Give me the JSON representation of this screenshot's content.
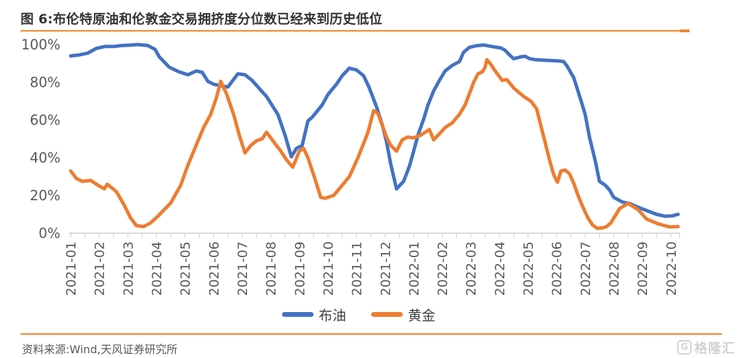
{
  "header": {
    "title": "图 6:布伦特原油和伦敦金交易拥挤度分位数已经来到历史低位"
  },
  "footer": {
    "source": "资料来源:Wind,天风证券研究所",
    "logo_mark": "G",
    "logo_text": "格隆汇"
  },
  "colors": {
    "brent_blue": "#4472C4",
    "gold_orange": "#ED7D31",
    "accent_rule": "#F0862B",
    "title_text": "#333333",
    "axis_text": "#595959",
    "axis_line": "#D0CECE",
    "legend_text": "#404040",
    "source_text": "#595959",
    "logo_gray": "#D2D2D2"
  },
  "chart_data": {
    "type": "line",
    "title": "布伦特原油和伦敦金交易拥挤度分位数已经来到历史低位",
    "xlabel": "",
    "ylabel": "",
    "ylim": [
      0,
      100
    ],
    "y_ticks": [
      "100%",
      "80%",
      "60%",
      "40%",
      "20%",
      "0%"
    ],
    "grid": false,
    "legend_position": "bottom",
    "x_unit": "months since 2021-01, fractional = intra-month (weekly data)",
    "categories": [
      "2021-01",
      "2021-02",
      "2021-03",
      "2021-04",
      "2021-05",
      "2021-06",
      "2021-07",
      "2021-08",
      "2021-09",
      "2021-10",
      "2021-11",
      "2021-12",
      "2022-01",
      "2022-02",
      "2022-03",
      "2022-04",
      "2022-05",
      "2022-06",
      "2022-07",
      "2022-08",
      "2022-09",
      "2022-10"
    ],
    "series": [
      {
        "name": "布油",
        "color": "#4472C4",
        "points": [
          [
            0,
            94
          ],
          [
            0.3,
            94.5
          ],
          [
            0.6,
            95.5
          ],
          [
            0.9,
            98
          ],
          [
            1.2,
            99
          ],
          [
            1.5,
            99
          ],
          [
            1.8,
            99.5
          ],
          [
            2.1,
            99.7
          ],
          [
            2.35,
            100
          ],
          [
            2.7,
            99.5
          ],
          [
            2.95,
            97.5
          ],
          [
            3.1,
            93.5
          ],
          [
            3.45,
            88
          ],
          [
            3.8,
            85.5
          ],
          [
            4.1,
            84
          ],
          [
            4.4,
            86
          ],
          [
            4.6,
            85.3
          ],
          [
            4.8,
            80.5
          ],
          [
            5,
            79
          ],
          [
            5.3,
            78
          ],
          [
            5.5,
            77.5
          ],
          [
            5.85,
            84.5
          ],
          [
            6.1,
            84
          ],
          [
            6.35,
            81
          ],
          [
            6.7,
            75
          ],
          [
            6.85,
            72.5
          ],
          [
            7.25,
            63
          ],
          [
            7.5,
            52
          ],
          [
            7.72,
            40.5
          ],
          [
            7.9,
            45
          ],
          [
            8.1,
            46.5
          ],
          [
            8.3,
            59.5
          ],
          [
            8.45,
            61.5
          ],
          [
            8.8,
            68
          ],
          [
            9,
            73.5
          ],
          [
            9.3,
            79
          ],
          [
            9.5,
            83.5
          ],
          [
            9.75,
            87.5
          ],
          [
            10,
            86.5
          ],
          [
            10.25,
            83.5
          ],
          [
            10.45,
            77
          ],
          [
            10.55,
            73
          ],
          [
            10.7,
            67
          ],
          [
            10.9,
            57.5
          ],
          [
            11.05,
            48.5
          ],
          [
            11.2,
            36.5
          ],
          [
            11.4,
            23.5
          ],
          [
            11.65,
            27.5
          ],
          [
            11.85,
            35.5
          ],
          [
            12,
            43.5
          ],
          [
            12.15,
            52
          ],
          [
            12.35,
            60.5
          ],
          [
            12.5,
            68
          ],
          [
            12.7,
            75.5
          ],
          [
            12.9,
            81
          ],
          [
            13.1,
            86
          ],
          [
            13.35,
            89
          ],
          [
            13.6,
            91
          ],
          [
            13.75,
            96
          ],
          [
            13.95,
            98.5
          ],
          [
            14.2,
            99.4
          ],
          [
            14.45,
            99.8
          ],
          [
            14.65,
            99.2
          ],
          [
            14.85,
            98.7
          ],
          [
            15.05,
            98.2
          ],
          [
            15.2,
            97
          ],
          [
            15.35,
            94.5
          ],
          [
            15.5,
            92.5
          ],
          [
            15.75,
            93.5
          ],
          [
            15.9,
            93.8
          ],
          [
            16.05,
            92.6
          ],
          [
            16.25,
            92
          ],
          [
            16.55,
            91.7
          ],
          [
            16.85,
            91.5
          ],
          [
            17.1,
            91.3
          ],
          [
            17.25,
            91
          ],
          [
            17.35,
            89
          ],
          [
            17.6,
            82.5
          ],
          [
            17.85,
            70.5
          ],
          [
            18,
            63
          ],
          [
            18.15,
            51
          ],
          [
            18.35,
            38.5
          ],
          [
            18.5,
            27.5
          ],
          [
            18.7,
            25.5
          ],
          [
            18.85,
            23
          ],
          [
            19,
            19
          ],
          [
            19.3,
            16.5
          ],
          [
            19.55,
            15.7
          ],
          [
            19.9,
            13.5
          ],
          [
            20.15,
            12
          ],
          [
            20.5,
            10
          ],
          [
            20.8,
            9
          ],
          [
            21.05,
            9.2
          ],
          [
            21.25,
            10
          ]
        ]
      },
      {
        "name": "黄金",
        "color": "#ED7D31",
        "points": [
          [
            0,
            33
          ],
          [
            0.2,
            29
          ],
          [
            0.4,
            27.5
          ],
          [
            0.7,
            28
          ],
          [
            0.95,
            25.5
          ],
          [
            1.18,
            23.5
          ],
          [
            1.28,
            26
          ],
          [
            1.6,
            22
          ],
          [
            1.85,
            15.5
          ],
          [
            2.1,
            8
          ],
          [
            2.3,
            4
          ],
          [
            2.55,
            3.5
          ],
          [
            2.8,
            5.5
          ],
          [
            3.05,
            9
          ],
          [
            3.5,
            16
          ],
          [
            3.85,
            25.5
          ],
          [
            4.1,
            36
          ],
          [
            4.4,
            47
          ],
          [
            4.65,
            56
          ],
          [
            4.9,
            63
          ],
          [
            5.1,
            72
          ],
          [
            5.25,
            80.5
          ],
          [
            5.45,
            74
          ],
          [
            5.7,
            63
          ],
          [
            5.9,
            52
          ],
          [
            6.1,
            42.5
          ],
          [
            6.3,
            46.5
          ],
          [
            6.5,
            49
          ],
          [
            6.7,
            50
          ],
          [
            6.85,
            53.5
          ],
          [
            7.1,
            48.5
          ],
          [
            7.35,
            43.5
          ],
          [
            7.55,
            39
          ],
          [
            7.77,
            35
          ],
          [
            8,
            43.5
          ],
          [
            8.15,
            45
          ],
          [
            8.3,
            40
          ],
          [
            8.5,
            31
          ],
          [
            8.75,
            19
          ],
          [
            8.9,
            18.5
          ],
          [
            9.2,
            20
          ],
          [
            9.45,
            24.5
          ],
          [
            9.75,
            30
          ],
          [
            10.05,
            40
          ],
          [
            10.4,
            53.5
          ],
          [
            10.6,
            65
          ],
          [
            10.75,
            63.5
          ],
          [
            11.05,
            51
          ],
          [
            11.2,
            46.5
          ],
          [
            11.4,
            43.5
          ],
          [
            11.6,
            49.5
          ],
          [
            11.8,
            51
          ],
          [
            12,
            50.5
          ],
          [
            12.25,
            52
          ],
          [
            12.55,
            55
          ],
          [
            12.7,
            49.5
          ],
          [
            12.95,
            53.5
          ],
          [
            13.1,
            56
          ],
          [
            13.35,
            58.5
          ],
          [
            13.6,
            63
          ],
          [
            13.8,
            68
          ],
          [
            13.95,
            74
          ],
          [
            14.1,
            80
          ],
          [
            14.25,
            84.5
          ],
          [
            14.4,
            85.5
          ],
          [
            14.5,
            88
          ],
          [
            14.56,
            92
          ],
          [
            14.7,
            89.5
          ],
          [
            14.85,
            86
          ],
          [
            15,
            83
          ],
          [
            15.1,
            81
          ],
          [
            15.25,
            81.5
          ],
          [
            15.35,
            79.8
          ],
          [
            15.5,
            77
          ],
          [
            15.65,
            75
          ],
          [
            15.85,
            72.5
          ],
          [
            16.1,
            70
          ],
          [
            16.3,
            66
          ],
          [
            16.45,
            57
          ],
          [
            16.6,
            48
          ],
          [
            16.75,
            39
          ],
          [
            16.9,
            31
          ],
          [
            17.03,
            27
          ],
          [
            17.15,
            33
          ],
          [
            17.3,
            33.5
          ],
          [
            17.45,
            31.5
          ],
          [
            17.6,
            26.5
          ],
          [
            17.75,
            20
          ],
          [
            17.9,
            14.5
          ],
          [
            18.1,
            8
          ],
          [
            18.25,
            4.5
          ],
          [
            18.42,
            2.6
          ],
          [
            18.6,
            2.8
          ],
          [
            18.75,
            3.5
          ],
          [
            18.9,
            5.5
          ],
          [
            19.2,
            13
          ],
          [
            19.5,
            15.8
          ],
          [
            19.85,
            12.5
          ],
          [
            20.15,
            7.5
          ],
          [
            20.55,
            5
          ],
          [
            20.95,
            3.3
          ],
          [
            21.25,
            3.5
          ]
        ]
      }
    ]
  }
}
